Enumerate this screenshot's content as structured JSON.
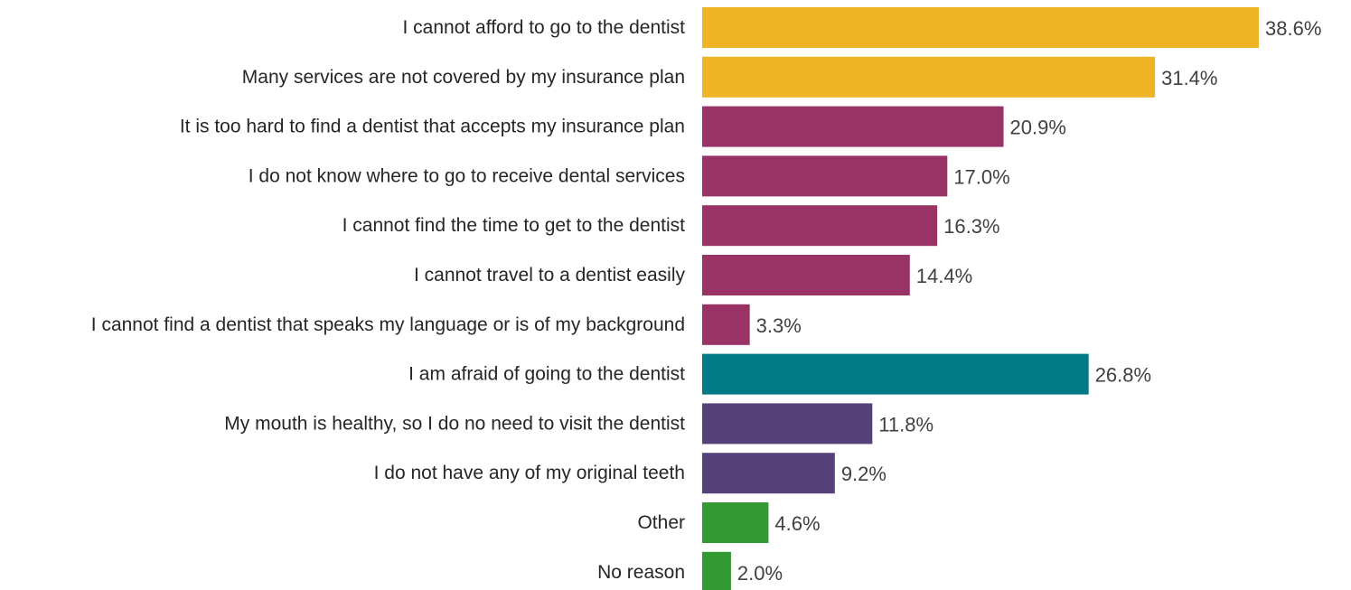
{
  "chart_data": {
    "type": "bar",
    "orientation": "horizontal",
    "title": "",
    "xlabel": "",
    "ylabel": "",
    "xlim": [
      0,
      38.6
    ],
    "grid": false,
    "legend": "none",
    "value_suffix": "%",
    "categories": [
      "I cannot afford to go to the dentist",
      "Many services are not covered by my insurance plan",
      "It is too hard to find a dentist that accepts my insurance plan",
      "I do not know where to go to receive dental services",
      "I cannot find the time to get to the dentist",
      "I cannot travel to a dentist easily",
      "I cannot find a dentist that speaks my language or is of my background",
      "I am afraid of going to the dentist",
      "My mouth is healthy, so I do no need to visit the dentist",
      "I do not have any of my original teeth",
      "Other",
      "No reason"
    ],
    "values": [
      38.6,
      31.4,
      20.9,
      17.0,
      16.3,
      14.4,
      3.3,
      26.8,
      11.8,
      9.2,
      4.6,
      2.0
    ],
    "value_labels": [
      "38.6%",
      "31.4%",
      "20.9%",
      "17.0%",
      "16.3%",
      "14.4%",
      "3.3%",
      "26.8%",
      "11.8%",
      "9.2%",
      "4.6%",
      "2.0%"
    ],
    "bar_colors": [
      "#f0b323",
      "#f0b323",
      "#993366",
      "#993366",
      "#993366",
      "#993366",
      "#993366",
      "#007a87",
      "#56417a",
      "#56417a",
      "#339933",
      "#339933"
    ]
  }
}
